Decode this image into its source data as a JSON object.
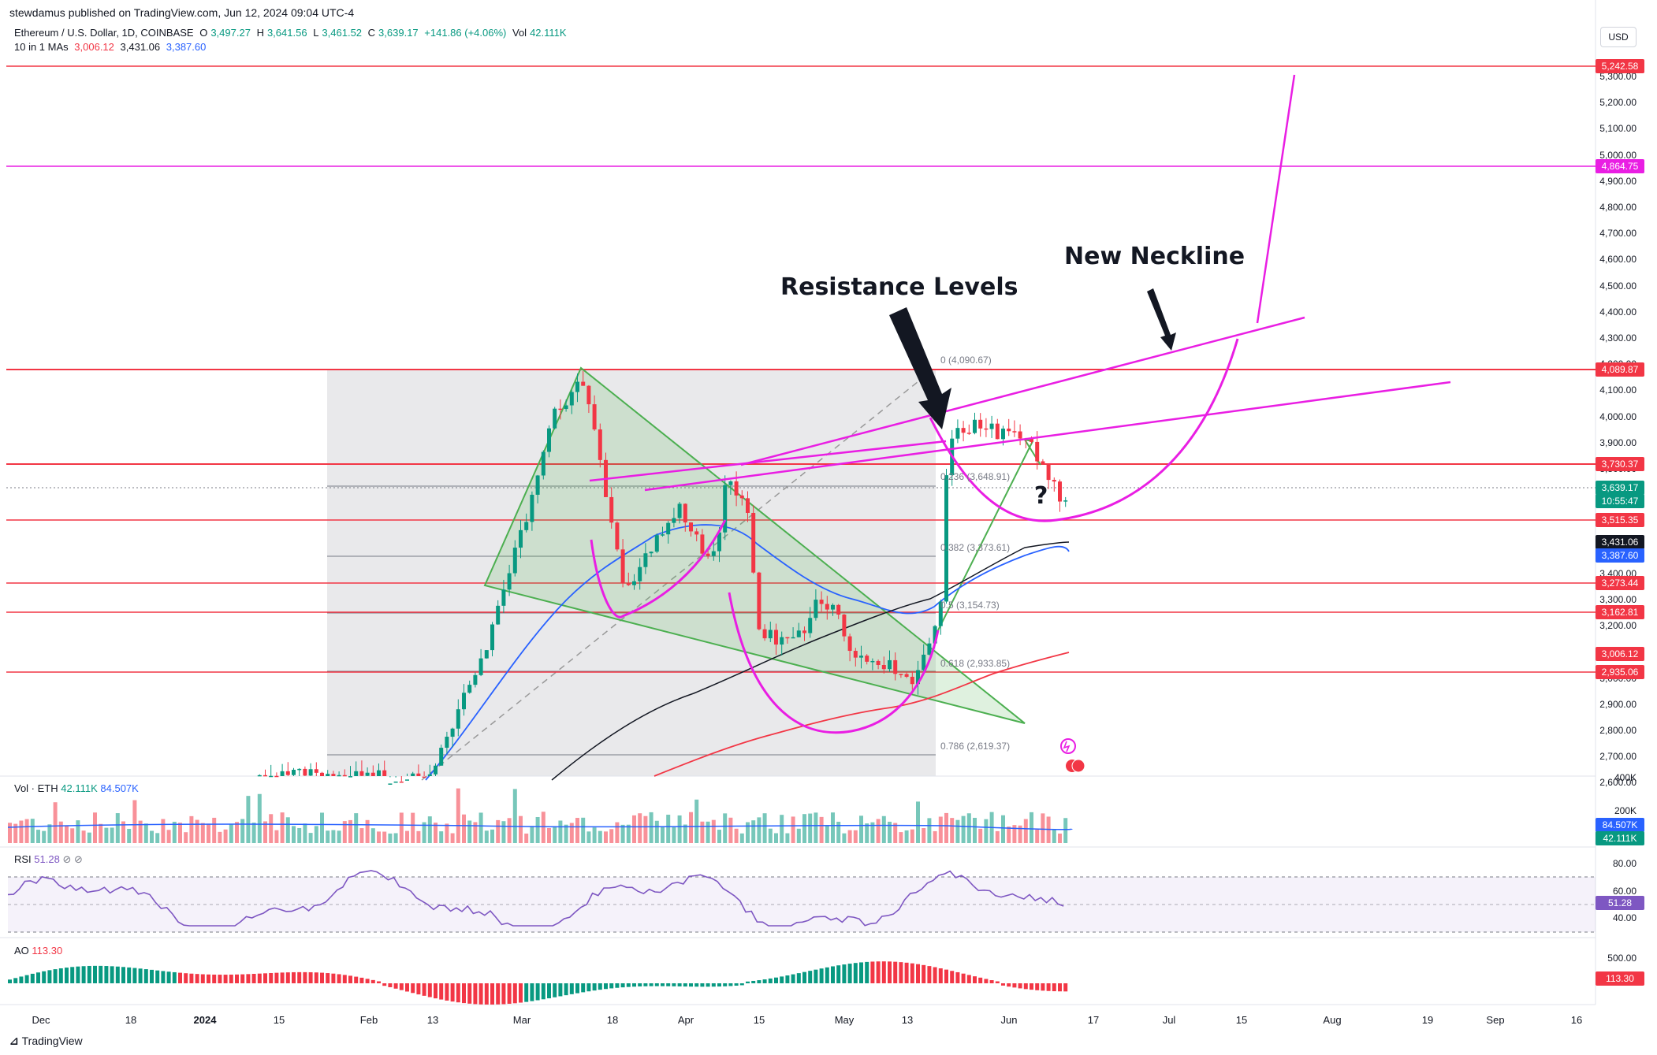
{
  "header": {
    "credit": "stewdamus published on TradingView.com, Jun 12, 2024 09:04 UTC-4",
    "symbol": "Ethereum / U.S. Dollar, 1D, COINBASE",
    "ohlc": {
      "O": "3,497.27",
      "H": "3,641.56",
      "L": "3,461.52",
      "C": "3,639.17",
      "change": "+141.86 (+4.06%)",
      "vol": "42.111K"
    },
    "ma_label": "10 in 1 MAs",
    "ma_values": [
      "3,006.12",
      "3,431.06",
      "3,387.60"
    ],
    "currency": "USD"
  },
  "annotations": {
    "resistance": "Resistance Levels",
    "neckline": "New Neckline",
    "question": "?"
  },
  "fib": {
    "f0": "0 (4,090.67)",
    "f236": "0.236 (3,648.91)",
    "f382": "0.382 (3,373.61)",
    "f5": "0.5 (3,154.73)",
    "f618": "0.618 (2,933.85)",
    "f786": "0.786 (2,619.37)"
  },
  "price_axis": [
    "5,300.00",
    "5,200.00",
    "5,100.00",
    "5,000.00",
    "4,900.00",
    "4,800.00",
    "4,700.00",
    "4,600.00",
    "4,500.00",
    "4,400.00",
    "4,300.00",
    "4,200.00",
    "4,100.00",
    "4,000.00",
    "3,900.00",
    "3,800.00",
    "3,700.00",
    "3,600.00",
    "3,500.00",
    "3,400.00",
    "3,300.00",
    "3,200.00",
    "3,100.00",
    "3,000.00",
    "2,900.00",
    "2,800.00",
    "2,700.00",
    "2,600.00"
  ],
  "price_tags": {
    "t5242": "5,242.58",
    "t4864": "4,864.75",
    "t4089": "4,089.87",
    "t3730": "3,730.37",
    "cur": "3,639.17",
    "cur_time": "10:55:47",
    "t3515": "3,515.35",
    "t3431": "3,431.06",
    "t3387": "3,387.60",
    "t3273": "3,273.44",
    "t3162": "3,162.81",
    "t3006": "3,006.12",
    "t2935": "2,935.06"
  },
  "volume_pane": {
    "label": "Vol · ETH",
    "v1": "42.111K",
    "v2": "84.507K",
    "axis": [
      "400K",
      "200K"
    ],
    "tag1": "84.507K",
    "tag2": "42.111K"
  },
  "rsi_pane": {
    "label": "RSI",
    "value": "51.28",
    "axis": [
      "80.00",
      "60.00",
      "40.00"
    ],
    "tag": "51.28"
  },
  "ao_pane": {
    "label": "AO",
    "value": "113.30",
    "axis": [
      "500.00"
    ],
    "tag": "113.30"
  },
  "x_axis": [
    "Dec",
    "18",
    "2024",
    "15",
    "Feb",
    "13",
    "Mar",
    "18",
    "Apr",
    "15",
    "May",
    "13",
    "Jun",
    "17",
    "Jul",
    "15",
    "Aug",
    "19",
    "Sep",
    "16"
  ],
  "footer": "TradingView",
  "colors": {
    "up": "#089981",
    "down": "#f23645",
    "magenta": "#e91ee3",
    "red_line": "#f23645",
    "green_wedge": "#4caf50",
    "ma_blue": "#2962ff",
    "ma_black": "#131722",
    "ma_red": "#f23645",
    "rsi": "#7e57c2"
  },
  "chart_data": {
    "type": "candlestick",
    "title": "Ethereum / U.S. Dollar, 1D, COINBASE",
    "ylim": [
      2550,
      5350
    ],
    "horizontal_levels": [
      5242.58,
      4864.75,
      4089.87,
      3730.37,
      3515.35,
      3273.44,
      3162.81,
      2935.06
    ],
    "fib_levels": [
      4090.67,
      3648.91,
      3373.61,
      3154.73,
      2933.85,
      2619.37
    ],
    "last_close": 3639.17,
    "ma_values": [
      3006.12,
      3431.06,
      3387.6
    ],
    "rsi": 51.28,
    "ao": 113.3
  }
}
